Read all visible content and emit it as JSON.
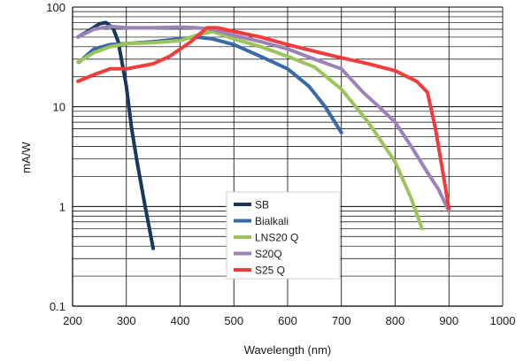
{
  "chart_data": {
    "type": "line",
    "title": "",
    "xlabel": "Wavelength (nm)",
    "ylabel": "mA/W",
    "xlim": [
      200,
      1000
    ],
    "ylim": [
      0.1,
      100
    ],
    "yscale": "log",
    "grid": true,
    "legend_position": "center-left",
    "x_ticks": [
      200,
      300,
      400,
      500,
      600,
      700,
      800,
      900,
      1000
    ],
    "x_tick_labels": [
      "200",
      "300",
      "400",
      "500",
      "600",
      "700",
      "800",
      "900",
      "1000"
    ],
    "y_ticks": [
      0.1,
      1,
      10,
      100
    ],
    "y_tick_labels": [
      "0.1",
      "1",
      "10",
      "100"
    ],
    "series": [
      {
        "name": "SB",
        "color": "#17375e",
        "points": [
          [
            210,
            50
          ],
          [
            230,
            58
          ],
          [
            250,
            68
          ],
          [
            262,
            70
          ],
          [
            275,
            62
          ],
          [
            285,
            45
          ],
          [
            300,
            16
          ],
          [
            310,
            6
          ],
          [
            320,
            2.8
          ],
          [
            335,
            1
          ],
          [
            350,
            0.38
          ]
        ]
      },
      {
        "name": "Bialkali",
        "color": "#3a6aa5",
        "points": [
          [
            212,
            28
          ],
          [
            240,
            38
          ],
          [
            270,
            42
          ],
          [
            300,
            43
          ],
          [
            350,
            45
          ],
          [
            400,
            48
          ],
          [
            430,
            50
          ],
          [
            460,
            48
          ],
          [
            500,
            42
          ],
          [
            550,
            32
          ],
          [
            600,
            24
          ],
          [
            640,
            16
          ],
          [
            670,
            10
          ],
          [
            700,
            5.5
          ]
        ]
      },
      {
        "name": "LNS20 Q",
        "color": "#9bc45a",
        "points": [
          [
            210,
            28
          ],
          [
            240,
            35
          ],
          [
            270,
            40
          ],
          [
            300,
            43
          ],
          [
            350,
            44
          ],
          [
            400,
            46
          ],
          [
            430,
            52
          ],
          [
            460,
            57
          ],
          [
            500,
            48
          ],
          [
            550,
            40
          ],
          [
            600,
            32
          ],
          [
            650,
            25
          ],
          [
            700,
            15
          ],
          [
            750,
            7
          ],
          [
            800,
            2.8
          ],
          [
            830,
            1.2
          ],
          [
            850,
            0.6
          ]
        ]
      },
      {
        "name": "S20Q",
        "color": "#9b82b8",
        "points": [
          [
            210,
            50
          ],
          [
            240,
            60
          ],
          [
            270,
            64
          ],
          [
            300,
            62
          ],
          [
            350,
            62
          ],
          [
            400,
            63
          ],
          [
            430,
            62
          ],
          [
            460,
            60
          ],
          [
            500,
            52
          ],
          [
            550,
            45
          ],
          [
            600,
            38
          ],
          [
            650,
            30
          ],
          [
            700,
            24
          ],
          [
            740,
            14
          ],
          [
            770,
            10
          ],
          [
            800,
            7
          ],
          [
            830,
            4
          ],
          [
            860,
            2.2
          ],
          [
            880,
            1.5
          ],
          [
            900,
            0.9
          ]
        ]
      },
      {
        "name": "S25 Q",
        "color": "#f03c3c",
        "points": [
          [
            210,
            18
          ],
          [
            240,
            21
          ],
          [
            270,
            24
          ],
          [
            300,
            24
          ],
          [
            350,
            27
          ],
          [
            380,
            32
          ],
          [
            420,
            45
          ],
          [
            450,
            62
          ],
          [
            470,
            62
          ],
          [
            500,
            57
          ],
          [
            550,
            50
          ],
          [
            600,
            42
          ],
          [
            650,
            36
          ],
          [
            700,
            31
          ],
          [
            750,
            27
          ],
          [
            800,
            23
          ],
          [
            840,
            18
          ],
          [
            860,
            14
          ],
          [
            875,
            6
          ],
          [
            890,
            2
          ],
          [
            900,
            0.95
          ]
        ]
      }
    ]
  }
}
